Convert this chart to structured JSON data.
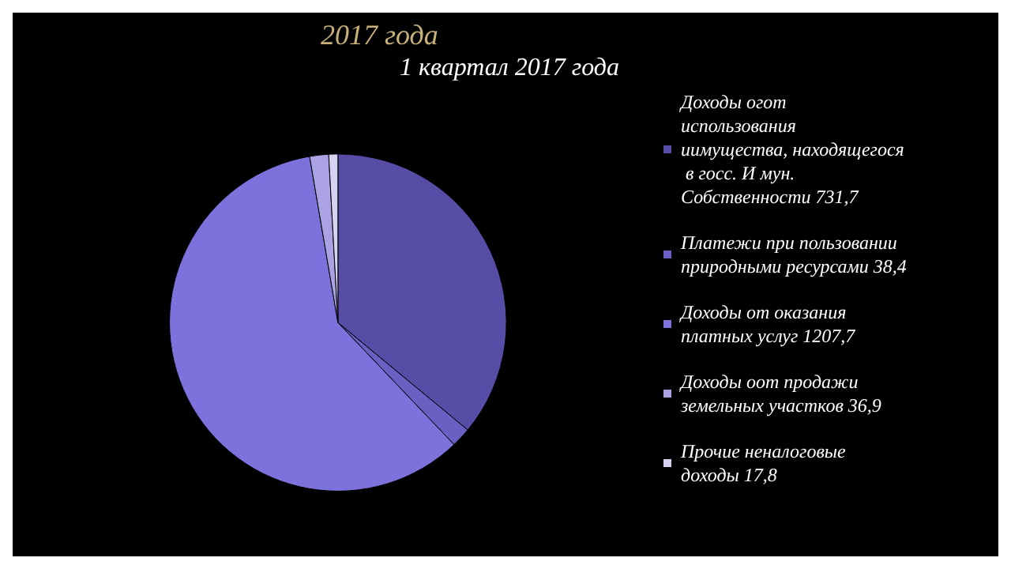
{
  "chart_data": {
    "type": "pie",
    "title": "2017 года",
    "subtitle": "1 квартал 2017 года",
    "categories": [
      "Доходы огот использования иимущества, находящегося в госс. И мун. Собственности",
      "Платежи при пользовании природными ресурсами",
      "Доходы от оказания платных услуг",
      "Доходы оот продажи земельных участков",
      "Прочие неналоговые доходы"
    ],
    "values": [
      731.7,
      38.4,
      1207.7,
      36.9,
      17.8
    ],
    "value_labels": [
      "731,7",
      "38,4",
      "1207,7",
      "36,9",
      "17,8"
    ],
    "colors": [
      "#574ca6",
      "#6a60c4",
      "#7d72dc",
      "#aaa2e2",
      "#d6d2f2"
    ],
    "legend": "right"
  }
}
